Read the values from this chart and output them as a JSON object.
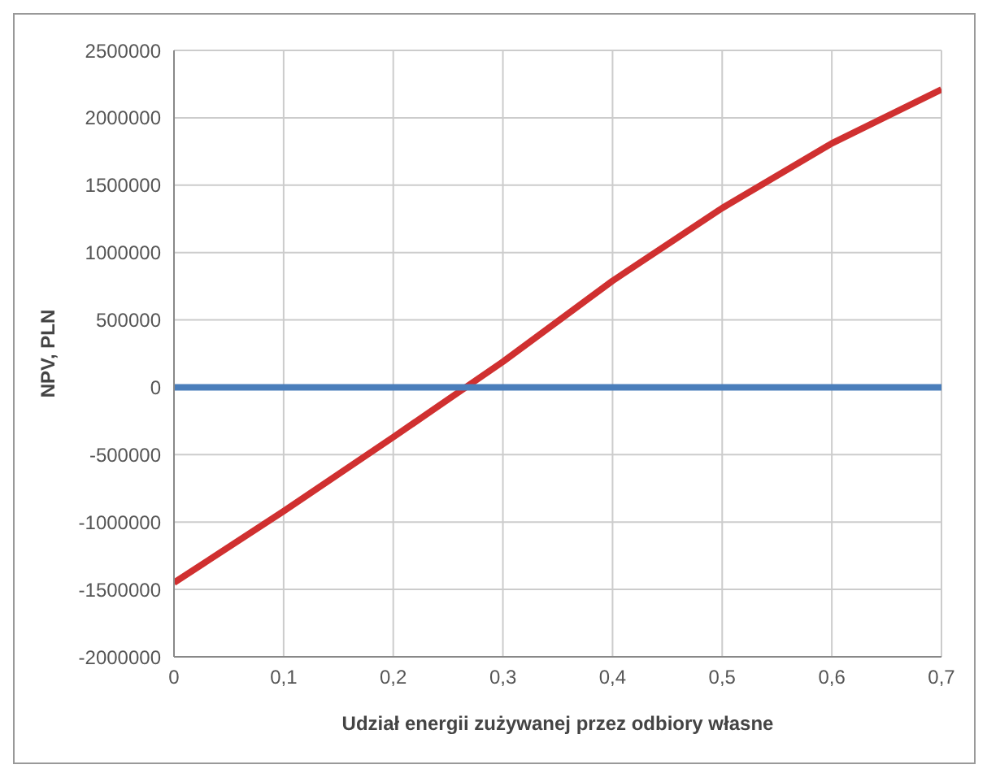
{
  "chart_data": {
    "type": "line",
    "xlabel": "Udział energii zużywanej przez odbiory własne",
    "ylabel": "NPV, PLN",
    "x": [
      0,
      0.1,
      0.2,
      0.3,
      0.4,
      0.5,
      0.6,
      0.7
    ],
    "series": [
      {
        "color": "#d03030",
        "values": [
          -1450000,
          -920000,
          -370000,
          190000,
          790000,
          1330000,
          1810000,
          2210000
        ]
      },
      {
        "color": "#4a7ebb",
        "values": [
          0,
          0,
          0,
          0,
          0,
          0,
          0,
          0
        ]
      }
    ],
    "xlim": [
      0,
      0.7
    ],
    "xticks": [
      0,
      {
        "value": 0.1,
        "label": "0,1"
      },
      {
        "value": 0.2,
        "label": "0,2"
      },
      {
        "value": 0.3,
        "label": "0,3"
      },
      {
        "value": 0.4,
        "label": "0,4"
      },
      {
        "value": 0.5,
        "label": "0,5"
      },
      {
        "value": 0.6,
        "label": "0,6"
      },
      {
        "value": 0.7,
        "label": "0,7"
      }
    ],
    "ylim": [
      -2000000,
      2500000
    ],
    "yticks": [
      -2000000,
      -1500000,
      -1000000,
      -500000,
      0,
      500000,
      1000000,
      1500000,
      2000000,
      2500000
    ],
    "grid": true,
    "marker": "none",
    "line_style": "solid"
  }
}
